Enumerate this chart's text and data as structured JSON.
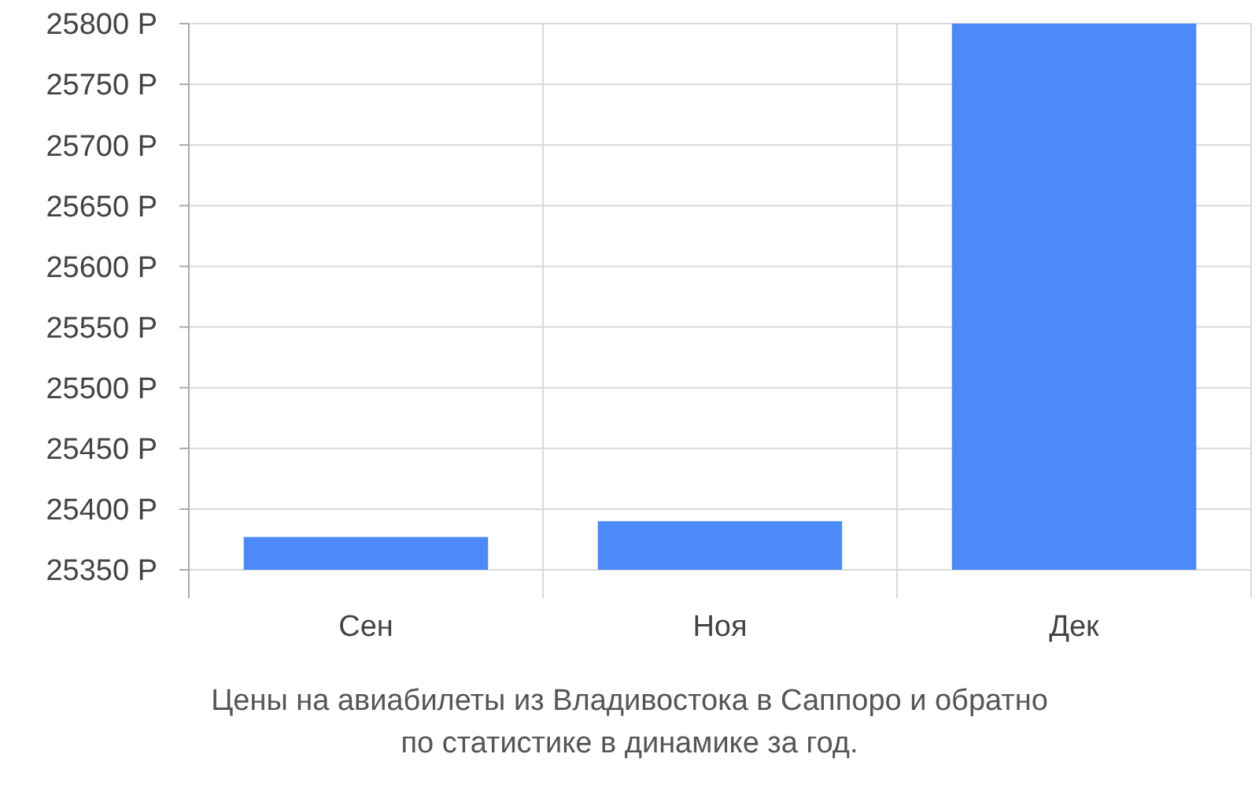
{
  "chart_data": {
    "type": "bar",
    "categories": [
      "Сен",
      "Ноя",
      "Дек"
    ],
    "values": [
      25377,
      25390,
      25800
    ],
    "color": "#4d8af8",
    "ylim": [
      25350,
      25800
    ],
    "yticks": [
      {
        "value": 25350,
        "label": "25350 Р"
      },
      {
        "value": 25400,
        "label": "25400 Р"
      },
      {
        "value": 25450,
        "label": "25450 Р"
      },
      {
        "value": 25500,
        "label": "25500 Р"
      },
      {
        "value": 25550,
        "label": "25550 Р"
      },
      {
        "value": 25600,
        "label": "25600 Р"
      },
      {
        "value": 25650,
        "label": "25650 Р"
      },
      {
        "value": 25700,
        "label": "25700 Р"
      },
      {
        "value": 25750,
        "label": "25750 Р"
      },
      {
        "value": 25800,
        "label": "25800 Р"
      }
    ],
    "grid": true,
    "annotations": [
      "Цены на авиабилеты из Владивостока в Саппоро и обратно",
      "по статистике в динамике за год."
    ]
  }
}
